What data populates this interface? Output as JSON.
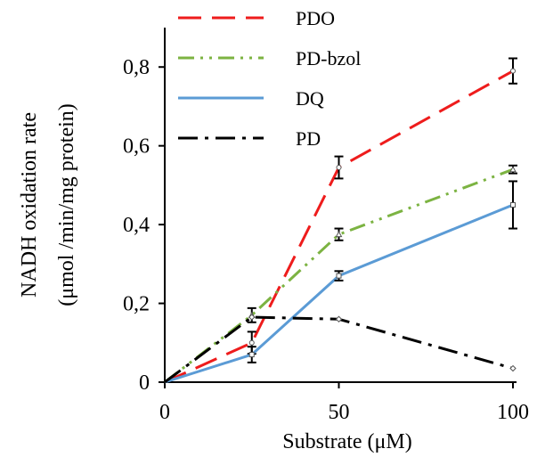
{
  "chart_data": {
    "type": "line",
    "title": "",
    "xlabel": "Substrate (μM)",
    "ylabel": "NADH oxidation rate",
    "ylabel_units": "(μmol /min/mg protein)",
    "x": [
      0,
      25,
      50,
      100
    ],
    "xlim": [
      0,
      100
    ],
    "ylim": [
      0,
      0.9
    ],
    "x_ticks": [
      0,
      50,
      100
    ],
    "x_tick_labels": [
      "0",
      "50",
      "100"
    ],
    "y_ticks": [
      0,
      0.2,
      0.4,
      0.6,
      0.8
    ],
    "y_tick_labels": [
      "0",
      "0,2",
      "0,4",
      "0,6",
      "0,8"
    ],
    "grid": false,
    "legend_position": "top-left",
    "series": [
      {
        "name": "PDO",
        "values": [
          0,
          0.1,
          0.545,
          0.79
        ],
        "errors": [
          0,
          0.028,
          0.028,
          0.032
        ],
        "color": "#ee1c1c",
        "dash": "long-dash",
        "marker": "circle"
      },
      {
        "name": "PD-bzol",
        "values": [
          0,
          0.17,
          0.375,
          0.54
        ],
        "errors": [
          0,
          0.018,
          0.015,
          0.01
        ],
        "color": "#7cb342",
        "dash": "dash-dot-dot",
        "marker": "triangle"
      },
      {
        "name": "DQ",
        "values": [
          0,
          0.07,
          0.27,
          0.45
        ],
        "errors": [
          0,
          0.02,
          0.012,
          0.06
        ],
        "color": "#5b9bd5",
        "dash": "solid",
        "marker": "square"
      },
      {
        "name": "PD",
        "values": [
          0,
          0.165,
          0.16,
          0.035
        ],
        "errors": [
          0,
          0,
          0,
          0
        ],
        "color": "#000000",
        "dash": "dash-dot",
        "marker": "diamond"
      }
    ]
  }
}
